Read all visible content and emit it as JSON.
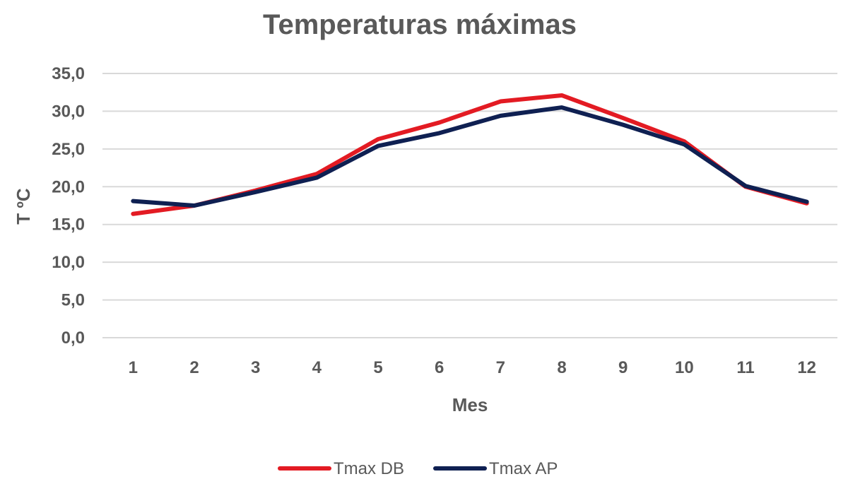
{
  "chart_data": {
    "type": "line",
    "title": "Temperaturas máximas",
    "xlabel": "Mes",
    "ylabel": "T ºC",
    "categories": [
      "1",
      "2",
      "3",
      "4",
      "5",
      "6",
      "7",
      "8",
      "9",
      "10",
      "11",
      "12"
    ],
    "y_ticks": [
      "0,0",
      "5,0",
      "10,0",
      "15,0",
      "20,0",
      "25,0",
      "30,0",
      "35,0"
    ],
    "ylim": [
      0,
      35
    ],
    "grid": true,
    "legend_position": "bottom",
    "series": [
      {
        "name": "Tmax DB",
        "color": "#e31b23",
        "values": [
          16.4,
          17.5,
          19.5,
          21.7,
          26.3,
          28.5,
          31.3,
          32.1,
          29.1,
          26.0,
          20.0,
          17.8
        ]
      },
      {
        "name": "Tmax AP",
        "color": "#0f2052",
        "values": [
          18.1,
          17.5,
          19.3,
          21.2,
          25.4,
          27.1,
          29.4,
          30.5,
          28.2,
          25.6,
          20.1,
          18.0
        ]
      }
    ]
  }
}
